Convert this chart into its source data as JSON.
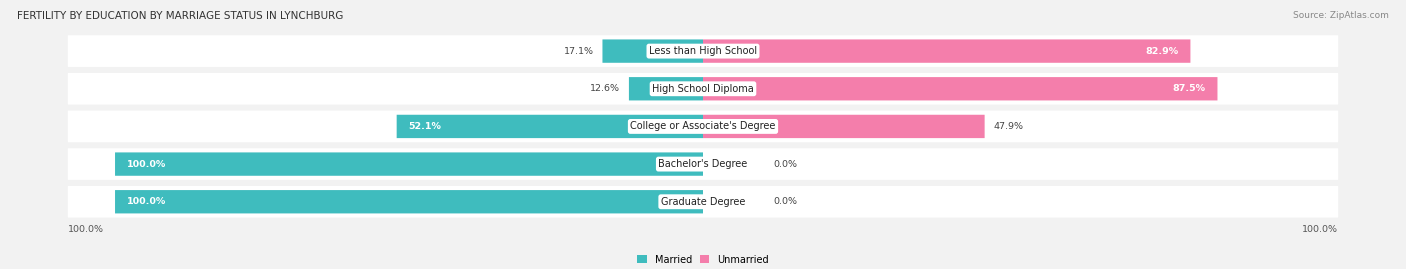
{
  "title": "FERTILITY BY EDUCATION BY MARRIAGE STATUS IN LYNCHBURG",
  "source": "Source: ZipAtlas.com",
  "categories": [
    "Less than High School",
    "High School Diploma",
    "College or Associate's Degree",
    "Bachelor's Degree",
    "Graduate Degree"
  ],
  "married": [
    17.1,
    12.6,
    52.1,
    100.0,
    100.0
  ],
  "unmarried": [
    82.9,
    87.5,
    47.9,
    0.0,
    0.0
  ],
  "married_color": "#3FBCBE",
  "unmarried_color": "#F47EAB",
  "unmarried_light_color": "#F9B8D0",
  "bg_color": "#F2F2F2",
  "bar_bg_color": "#E2E2EA",
  "x_axis_left_label": "100.0%",
  "x_axis_right_label": "100.0%"
}
